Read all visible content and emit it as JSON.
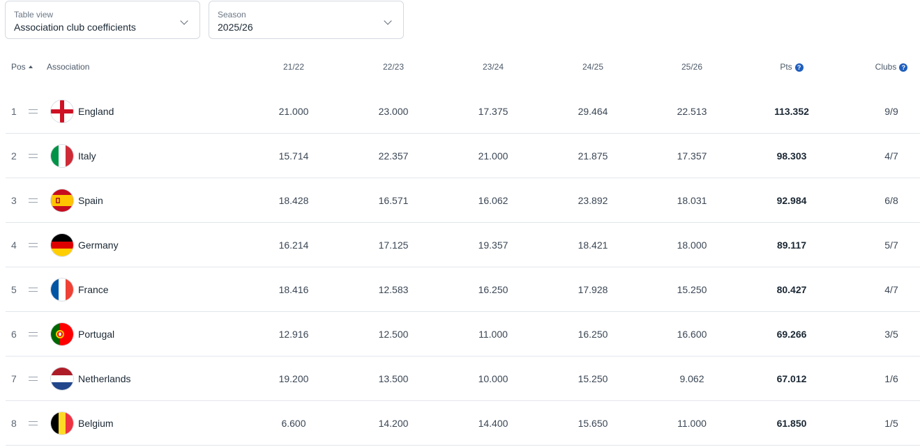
{
  "filters": {
    "view": {
      "label": "Table view",
      "value": "Association club coefficients"
    },
    "season": {
      "label": "Season",
      "value": "2025/26"
    }
  },
  "table": {
    "headers": {
      "pos": "Pos",
      "association": "Association",
      "s2122": "21/22",
      "s2223": "22/23",
      "s2324": "23/24",
      "s2425": "24/25",
      "s2526": "25/26",
      "pts": "Pts",
      "clubs": "Clubs"
    },
    "rows": [
      {
        "pos": "1",
        "name": "England",
        "s2122": "21.000",
        "s2223": "23.000",
        "s2324": "17.375",
        "s2425": "29.464",
        "s2526": "22.513",
        "pts": "113.352",
        "clubs": "9/9"
      },
      {
        "pos": "2",
        "name": "Italy",
        "s2122": "15.714",
        "s2223": "22.357",
        "s2324": "21.000",
        "s2425": "21.875",
        "s2526": "17.357",
        "pts": "98.303",
        "clubs": "4/7"
      },
      {
        "pos": "3",
        "name": "Spain",
        "s2122": "18.428",
        "s2223": "16.571",
        "s2324": "16.062",
        "s2425": "23.892",
        "s2526": "18.031",
        "pts": "92.984",
        "clubs": "6/8"
      },
      {
        "pos": "4",
        "name": "Germany",
        "s2122": "16.214",
        "s2223": "17.125",
        "s2324": "19.357",
        "s2425": "18.421",
        "s2526": "18.000",
        "pts": "89.117",
        "clubs": "5/7"
      },
      {
        "pos": "5",
        "name": "France",
        "s2122": "18.416",
        "s2223": "12.583",
        "s2324": "16.250",
        "s2425": "17.928",
        "s2526": "15.250",
        "pts": "80.427",
        "clubs": "4/7"
      },
      {
        "pos": "6",
        "name": "Portugal",
        "s2122": "12.916",
        "s2223": "12.500",
        "s2324": "11.000",
        "s2425": "16.250",
        "s2526": "16.600",
        "pts": "69.266",
        "clubs": "3/5"
      },
      {
        "pos": "7",
        "name": "Netherlands",
        "s2122": "19.200",
        "s2223": "13.500",
        "s2324": "10.000",
        "s2425": "15.250",
        "s2526": "9.062",
        "pts": "67.012",
        "clubs": "1/6"
      },
      {
        "pos": "8",
        "name": "Belgium",
        "s2122": "6.600",
        "s2223": "14.200",
        "s2324": "14.400",
        "s2425": "15.650",
        "s2526": "11.000",
        "pts": "61.850",
        "clubs": "1/5"
      }
    ]
  }
}
